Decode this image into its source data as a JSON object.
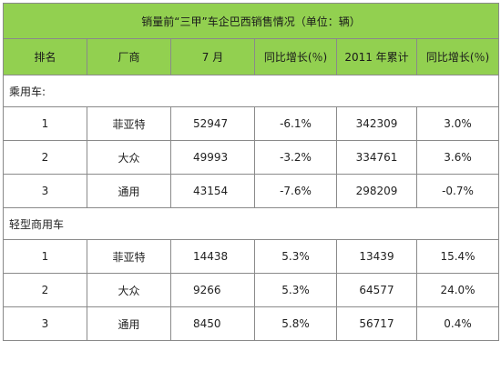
{
  "table": {
    "title": "销量前“三甲”车企巴西销售情况（单位：辆）",
    "columns": [
      "排名",
      "厂商",
      "7 月",
      "同比增长(％)",
      "2011 年累计",
      "同比增长(％)"
    ],
    "sections": [
      {
        "label": "乘用车:",
        "rows": [
          {
            "rank": "1",
            "maker": "菲亚特",
            "july": "52947",
            "yoy": "-6.1%",
            "ytd": "342309",
            "ytd_yoy": "3.0%"
          },
          {
            "rank": "2",
            "maker": "大众",
            "july": "49993",
            "yoy": "-3.2%",
            "ytd": "334761",
            "ytd_yoy": "3.6%"
          },
          {
            "rank": "3",
            "maker": "通用",
            "july": "43154",
            "yoy": "-7.6%",
            "ytd": "298209",
            "ytd_yoy": "-0.7%"
          }
        ]
      },
      {
        "label": "轻型商用车",
        "rows": [
          {
            "rank": "1",
            "maker": "菲亚特",
            "july": "14438",
            "yoy": "5.3%",
            "ytd": "13439",
            "ytd_yoy": "15.4%"
          },
          {
            "rank": "2",
            "maker": "大众",
            "july": "9266",
            "yoy": "5.3%",
            "ytd": "64577",
            "ytd_yoy": "24.0%"
          },
          {
            "rank": "3",
            "maker": "通用",
            "july": "8450",
            "yoy": "5.8%",
            "ytd": "56717",
            "ytd_yoy": "0.4%"
          }
        ]
      }
    ]
  }
}
